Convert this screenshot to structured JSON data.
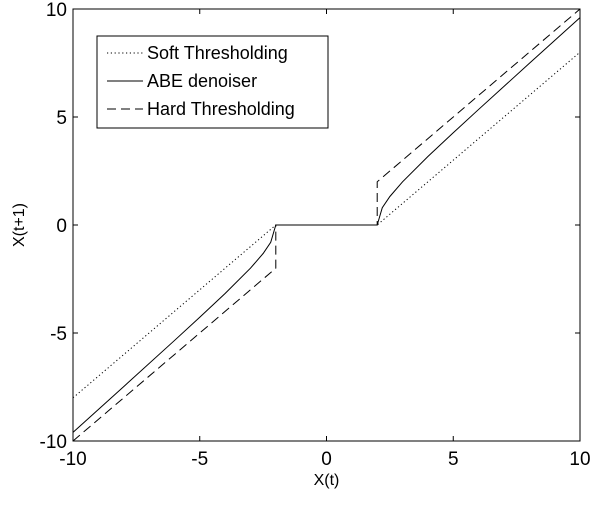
{
  "chart_data": {
    "type": "line",
    "xlabel": "X(t)",
    "ylabel": "X(t+1)",
    "xlim": [
      -10,
      10
    ],
    "ylim": [
      -10,
      10
    ],
    "xticks": [
      -10,
      -5,
      0,
      5,
      10
    ],
    "yticks": [
      -10,
      -5,
      0,
      5,
      10
    ],
    "grid": false,
    "legend_position": "top-left",
    "threshold": 2,
    "series": [
      {
        "name": "Soft Thresholding",
        "line_style": "dotted",
        "x": [
          -10,
          -2,
          2,
          10
        ],
        "y": [
          -8,
          0,
          0,
          8
        ]
      },
      {
        "name": "ABE denoiser",
        "line_style": "solid",
        "x": [
          -10,
          -8,
          -6,
          -5,
          -4,
          -3,
          -2.5,
          -2.2,
          -2,
          2,
          2.2,
          2.5,
          3,
          4,
          5,
          6,
          8,
          10
        ],
        "y": [
          -9.6,
          -7.48,
          -5.35,
          -4.27,
          -3.17,
          -2.0,
          -1.32,
          -0.8,
          0,
          0,
          0.8,
          1.32,
          2.0,
          3.17,
          4.27,
          5.35,
          7.48,
          9.6
        ]
      },
      {
        "name": "Hard Thresholding",
        "line_style": "dashed",
        "x": [
          -10,
          -2,
          -2,
          2,
          2,
          10
        ],
        "y": [
          -10,
          -2,
          0,
          0,
          2,
          10
        ]
      }
    ]
  },
  "colors": {
    "line": "#000000",
    "background": "#ffffff",
    "axes": "#000000"
  }
}
